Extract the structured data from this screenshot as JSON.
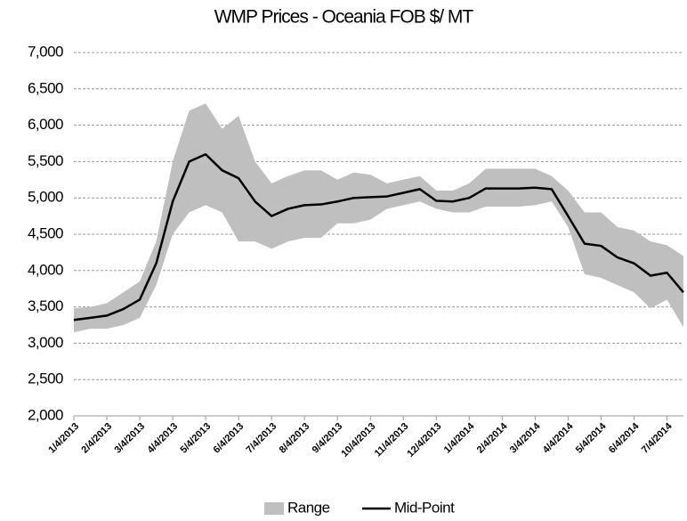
{
  "chart_data": {
    "type": "line",
    "title": "WMP Prices - Oceania FOB $/ MT",
    "categories": [
      "1/4/2013",
      null,
      "2/4/2013",
      null,
      "3/4/2013",
      null,
      "4/4/2013",
      null,
      "5/4/2013",
      null,
      "6/4/2013",
      null,
      "7/4/2013",
      null,
      "8/4/2013",
      null,
      "9/4/2013",
      null,
      "10/4/2013",
      null,
      "11/4/2013",
      null,
      "12/4/2013",
      null,
      "1/4/2014",
      null,
      "2/4/2014",
      null,
      "3/4/2014",
      null,
      "4/4/2014",
      null,
      "5/4/2014",
      null,
      "6/4/2014",
      null,
      "7/4/2014",
      null
    ],
    "series": [
      {
        "name": "Range",
        "color": "#bfbfbf",
        "high": [
          3480,
          3500,
          3550,
          3700,
          3850,
          4400,
          5500,
          6200,
          6300,
          5950,
          6130,
          5500,
          5200,
          5300,
          5380,
          5380,
          5250,
          5350,
          5320,
          5200,
          5250,
          5300,
          5100,
          5100,
          5200,
          5400,
          5400,
          5400,
          5400,
          5300,
          5100,
          4800,
          4800,
          4600,
          4550,
          4400,
          4350,
          4200
        ],
        "low": [
          3150,
          3200,
          3200,
          3250,
          3350,
          3800,
          4500,
          4800,
          4900,
          4800,
          4400,
          4400,
          4300,
          4400,
          4450,
          4450,
          4650,
          4650,
          4700,
          4850,
          4900,
          4950,
          4850,
          4800,
          4800,
          4880,
          4880,
          4880,
          4900,
          4950,
          4600,
          3950,
          3900,
          3800,
          3700,
          3480,
          3600,
          3220
        ]
      },
      {
        "name": "Mid-Point",
        "color": "#000000",
        "values": [
          3320,
          3350,
          3380,
          3470,
          3600,
          4100,
          4950,
          5500,
          5600,
          5380,
          5270,
          4950,
          4750,
          4850,
          4900,
          4910,
          4950,
          5000,
          5010,
          5020,
          5070,
          5120,
          4960,
          4950,
          5000,
          5130,
          5130,
          5130,
          5140,
          5120,
          4750,
          4370,
          4340,
          4180,
          4100,
          3930,
          3970,
          3700
        ]
      }
    ],
    "ylim": [
      2000,
      7000
    ],
    "yticks": [
      {
        "value": 2000,
        "label": "2,000"
      },
      {
        "value": 2500,
        "label": "2,500"
      },
      {
        "value": 3000,
        "label": "3,000"
      },
      {
        "value": 3500,
        "label": "3,500"
      },
      {
        "value": 4000,
        "label": "4,000"
      },
      {
        "value": 4500,
        "label": "4,500"
      },
      {
        "value": 5000,
        "label": "5,000"
      },
      {
        "value": 5500,
        "label": "5,500"
      },
      {
        "value": 6000,
        "label": "6,000"
      },
      {
        "value": 6500,
        "label": "6,500"
      },
      {
        "value": 7000,
        "label": "7,000"
      }
    ],
    "grid": true,
    "legend": "bottom"
  }
}
